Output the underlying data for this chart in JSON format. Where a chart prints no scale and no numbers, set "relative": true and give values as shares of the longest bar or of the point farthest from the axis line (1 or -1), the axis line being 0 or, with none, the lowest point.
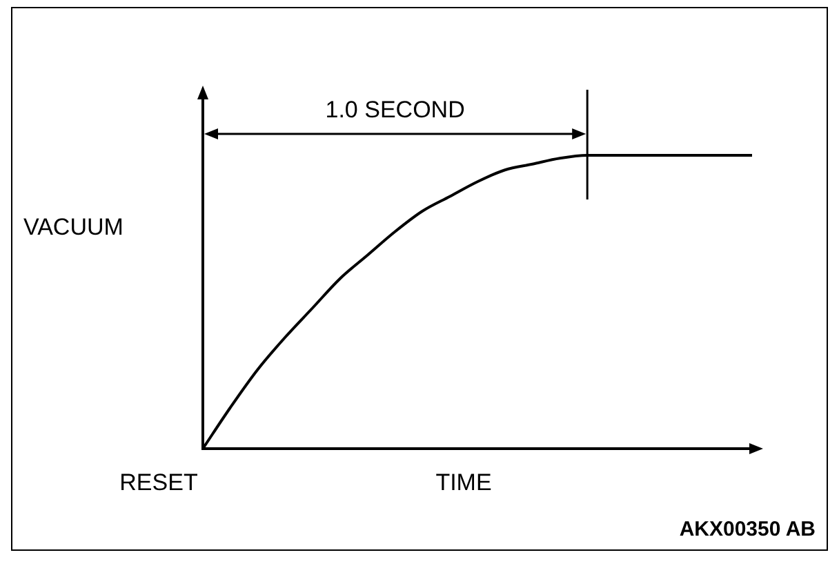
{
  "chart_data": {
    "type": "line",
    "relative": true,
    "xlabel": "TIME",
    "ylabel": "VACUUM",
    "categories": [
      null,
      null,
      null,
      null,
      null,
      null,
      null,
      null,
      null,
      null,
      null,
      null,
      null,
      null,
      null,
      null,
      null,
      null,
      null,
      null,
      null
    ],
    "series": [
      {
        "color": "#000000",
        "values": [
          0,
          0.14,
          0.27,
          0.38,
          0.48,
          0.58,
          0.66,
          0.74,
          0.81,
          0.86,
          0.91,
          0.95,
          0.97,
          0.99,
          1,
          1,
          1,
          1,
          1,
          1,
          1
        ]
      }
    ],
    "annotations": [
      "1.0 SECOND",
      "RESET",
      "AKX00350 AB"
    ],
    "legend": false,
    "grid": false,
    "marker": "none",
    "line_style": "solid"
  }
}
